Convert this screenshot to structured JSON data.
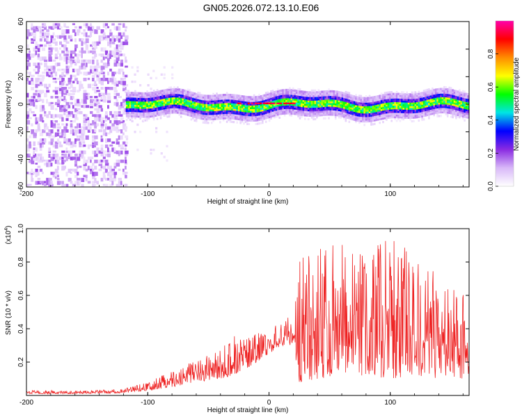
{
  "title": "GN05.2026.072.13.10.E06",
  "chart_data": [
    {
      "type": "heatmap",
      "name": "spectrogram",
      "xlabel": "Height of straight line (km)",
      "ylabel": "Frequency (Hz)",
      "xlim": [
        -200,
        165
      ],
      "ylim": [
        -60,
        60
      ],
      "xticks": [
        -200,
        -100,
        0,
        100
      ],
      "yticks": [
        60,
        40,
        20,
        0,
        -20,
        -40,
        -60
      ],
      "colorbar": {
        "label": "Normalized spectral amplitude",
        "range": [
          0.0,
          1.0
        ],
        "ticks": [
          0.0,
          0.2,
          0.4,
          0.6,
          0.8
        ],
        "colormap": [
          "#ffffff",
          "#d8b8f8",
          "#8a2be2",
          "#0000ff",
          "#00e5e5",
          "#00ff00",
          "#ffff00",
          "#ff8c00",
          "#ff0000",
          "#ff00aa"
        ]
      },
      "regions": [
        {
          "desc": "scattered noise",
          "x_range": [
            -200,
            -118
          ],
          "f_range": [
            -60,
            60
          ],
          "amplitude": 0.1
        },
        {
          "desc": "faint noise tail",
          "x_range": [
            -118,
            -80
          ],
          "f_range": [
            -40,
            30
          ],
          "amplitude": 0.03
        },
        {
          "desc": "signal band",
          "x_range": [
            -118,
            165
          ],
          "center_hz": 0,
          "half_width_hz": 6,
          "amplitude_range": [
            0.3,
            1.0
          ]
        }
      ]
    },
    {
      "type": "line",
      "name": "snr",
      "xlabel": "Height of straight line (km)",
      "ylabel": "SNR (10 * v/v)",
      "yscale_label": "(x10",
      "yscale_exp": "4",
      "xlim": [
        -200,
        165
      ],
      "ylim": [
        0,
        1.0
      ],
      "xticks": [
        -200,
        -100,
        0,
        100
      ],
      "yticks": [
        0.2,
        0.4,
        0.6,
        0.8,
        1.0
      ],
      "ytick_labels": [
        "0.2",
        "0.4",
        "0.6",
        "0.8",
        "1.0"
      ],
      "color": "#ee2222",
      "envelope": {
        "x": [
          -200,
          -150,
          -120,
          -100,
          -80,
          -60,
          -40,
          -30,
          -20,
          -10,
          0,
          10,
          20,
          25,
          40,
          60,
          80,
          100,
          120,
          140,
          165
        ],
        "base": [
          0.01,
          0.01,
          0.015,
          0.03,
          0.05,
          0.08,
          0.1,
          0.12,
          0.15,
          0.2,
          0.25,
          0.3,
          0.3,
          0.08,
          0.1,
          0.12,
          0.12,
          0.1,
          0.12,
          0.1,
          0.1
        ],
        "peak": [
          0.03,
          0.03,
          0.04,
          0.08,
          0.15,
          0.22,
          0.28,
          0.35,
          0.38,
          0.38,
          0.38,
          0.45,
          0.5,
          0.8,
          0.95,
          0.92,
          0.9,
          0.98,
          0.85,
          0.75,
          0.6
        ]
      }
    }
  ]
}
